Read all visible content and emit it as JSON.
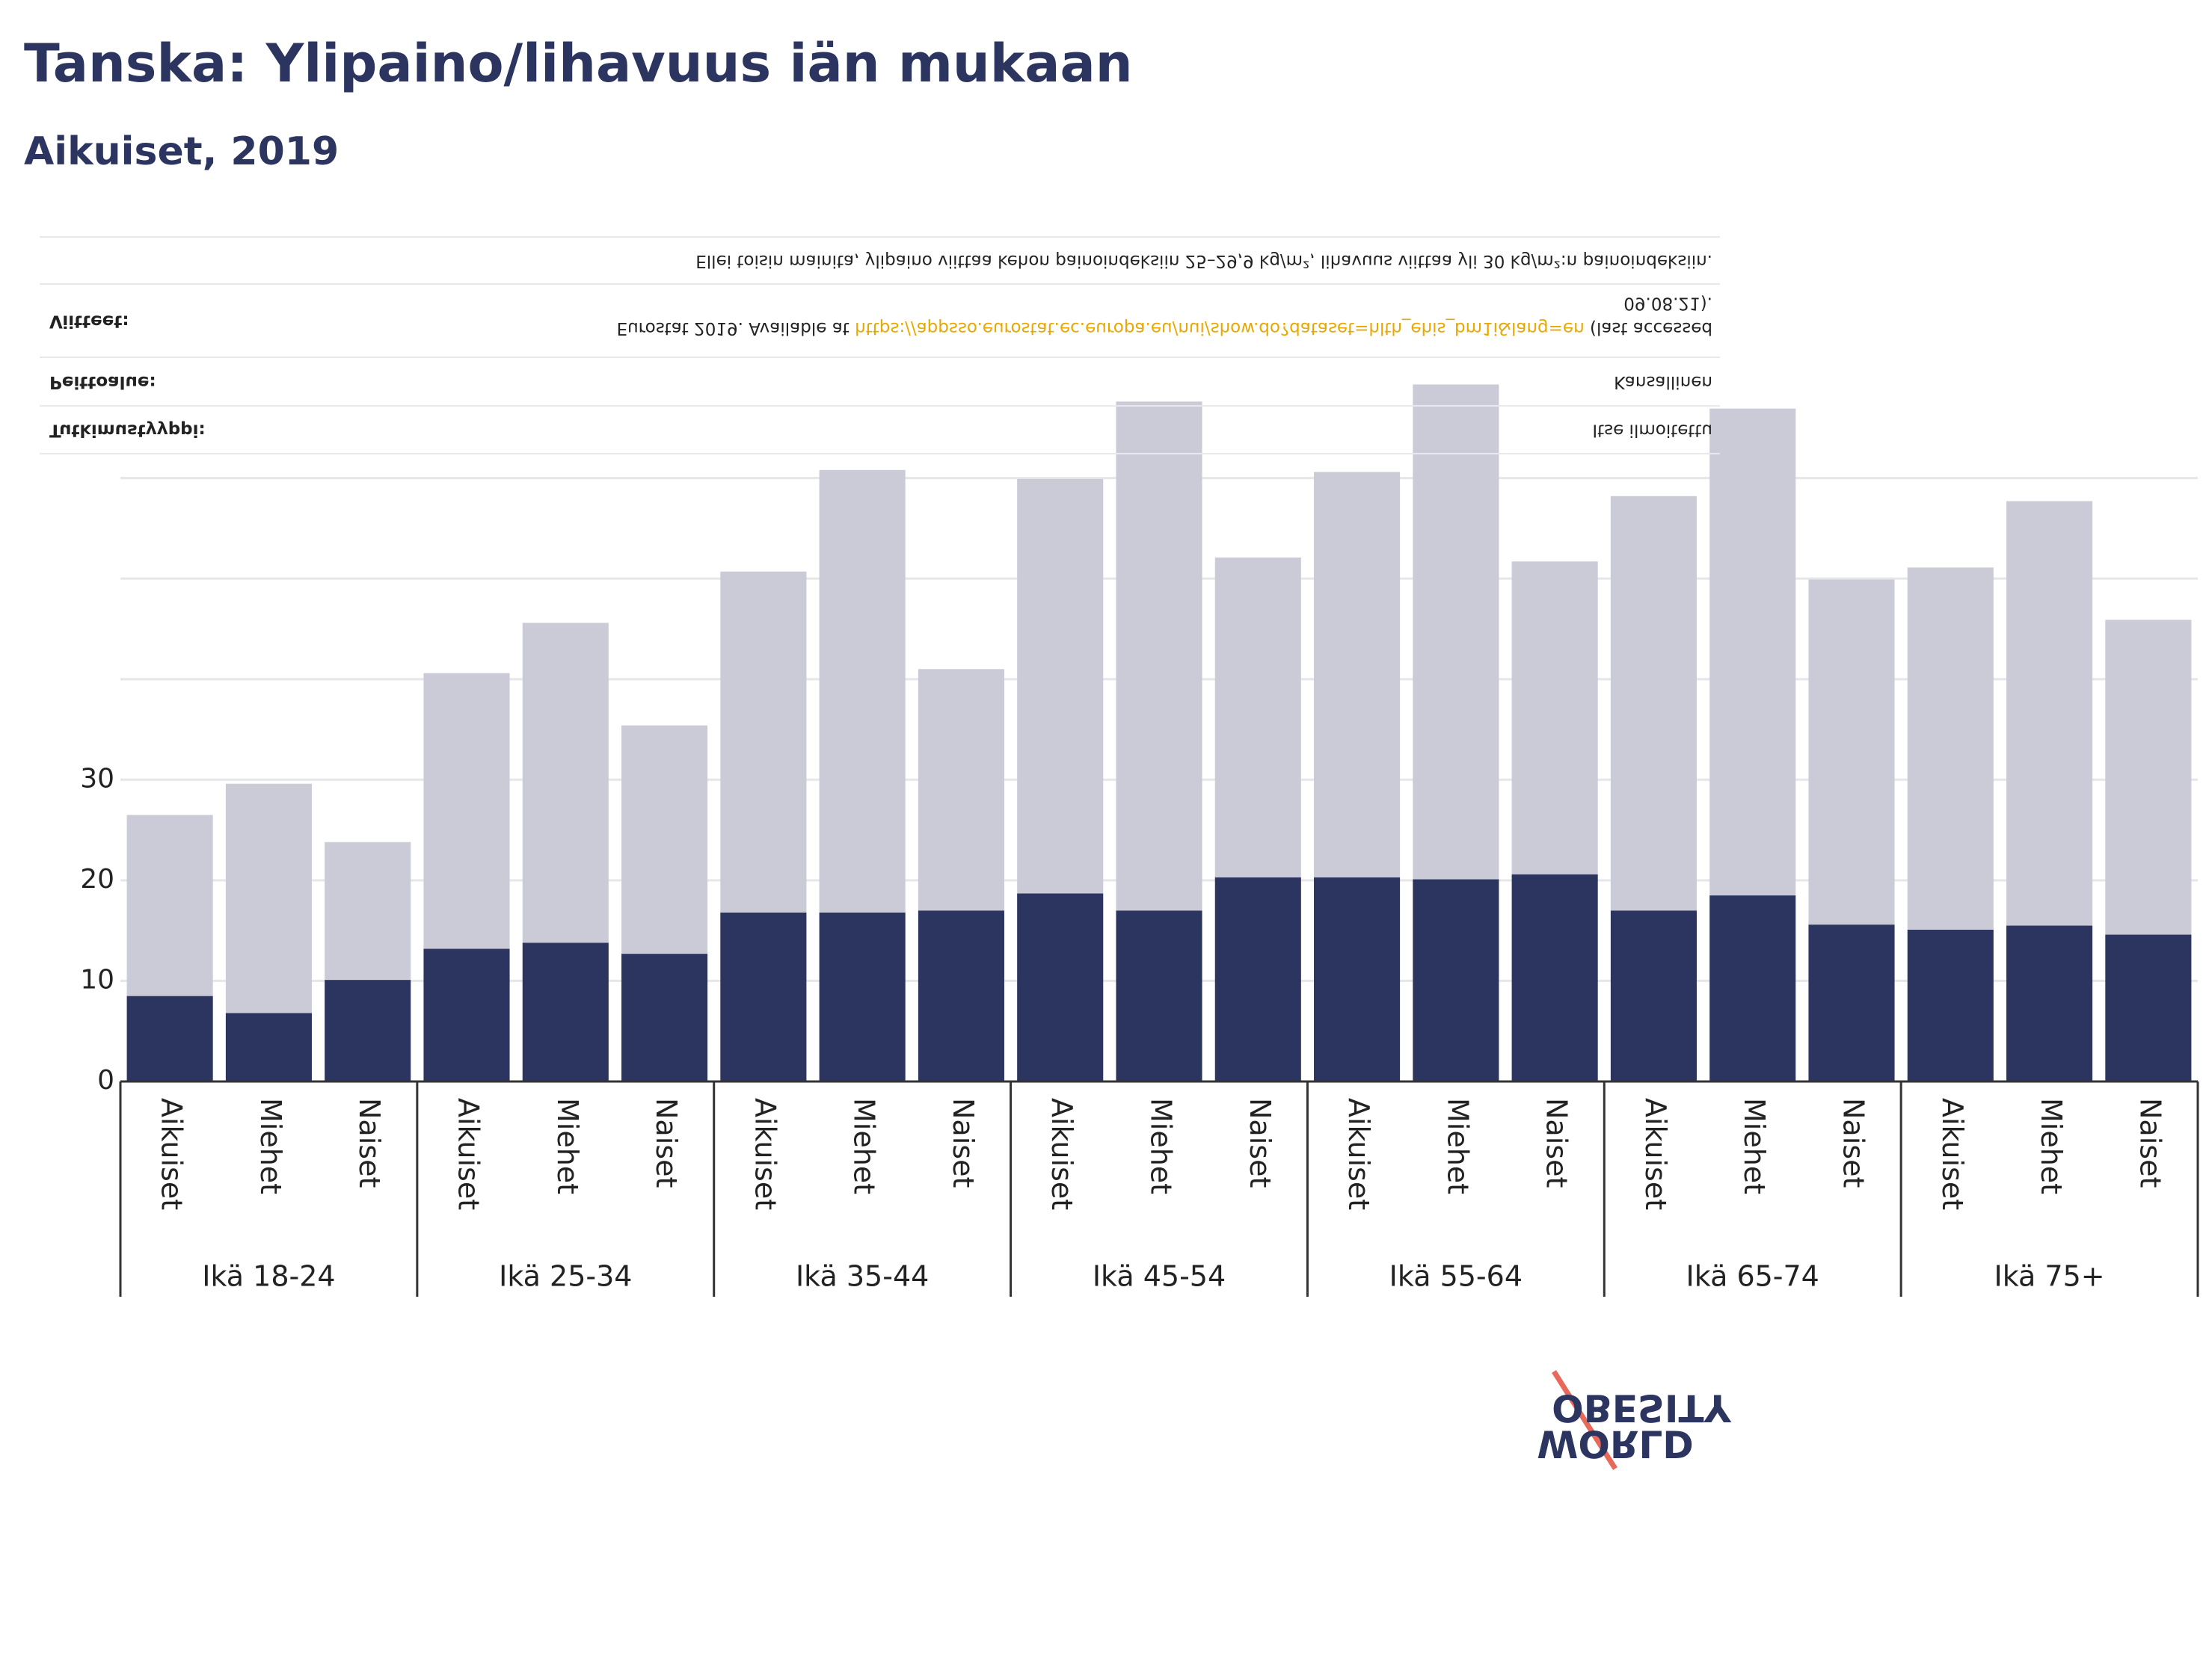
{
  "chart_data": {
    "type": "stacked_bar",
    "title": "Tanska: Ylipaino/lihavuus iän mukaan",
    "subtitle": "Aikuiset, 2019",
    "groups": [
      {
        "label": "Ikä 18-24",
        "categories": [
          "Aikuiset",
          "Miehet",
          "Naiset"
        ]
      },
      {
        "label": "Ikä 25-34",
        "categories": [
          "Aikuiset",
          "Miehet",
          "Naiset"
        ]
      },
      {
        "label": "Ikä 35-44",
        "categories": [
          "Aikuiset",
          "Miehet",
          "Naiset"
        ]
      },
      {
        "label": "Ikä 45-54",
        "categories": [
          "Aikuiset",
          "Miehet",
          "Naiset"
        ]
      },
      {
        "label": "Ikä 55-64",
        "categories": [
          "Aikuiset",
          "Miehet",
          "Naiset"
        ]
      },
      {
        "label": "Ikä 65-74",
        "categories": [
          "Aikuiset",
          "Miehet",
          "Naiset"
        ]
      },
      {
        "label": "Ikä 75+",
        "categories": [
          "Aikuiset",
          "Miehet",
          "Naiset"
        ]
      }
    ],
    "series": [
      {
        "color": "#2b3560",
        "values": [
          8.5,
          6.8,
          10.1,
          13.2,
          13.8,
          12.7,
          16.8,
          16.8,
          17.0,
          18.7,
          17.0,
          20.3,
          20.3,
          20.1,
          20.6,
          17.0,
          18.5,
          15.6,
          15.1,
          15.5,
          14.6
        ]
      },
      {
        "color": "#cacbd6",
        "values": [
          18.0,
          22.8,
          13.7,
          27.4,
          31.8,
          22.7,
          33.9,
          44.0,
          24.0,
          41.2,
          50.6,
          31.8,
          40.3,
          49.2,
          31.1,
          41.2,
          48.4,
          34.3,
          36.0,
          42.2,
          31.3
        ]
      }
    ],
    "ylim": [
      0,
      70
    ],
    "yticks": [
      0,
      10,
      20,
      30
    ],
    "grid_lines": [
      40,
      50,
      60
    ],
    "grid": true,
    "notes": [
      {
        "label": "",
        "text": [
          "Ellei toisin mainita, ylipaino viittaa kehon painoindeksiin 25–29,9 kg/m², lihavuus viittaa yli 30 kg/m²:n painoindeksiin."
        ]
      },
      {
        "label": "Viitteet:",
        "text": [
          "Eurostat 2019. Available at ",
          "https://appsso.eurostat.ec.europa.eu/nui/show.do?dataset=hlth_ehis_bm1i&lang=en",
          " (last accessed",
          "09.08.21)."
        ]
      },
      {
        "label": "Peittoalue:",
        "text": [
          "Kansallinen"
        ]
      },
      {
        "label": "Tutkimustyyppi:",
        "text": [
          "Itse ilmoitettu"
        ]
      }
    ],
    "logo": [
      "OBESITY",
      "WORLD"
    ]
  }
}
